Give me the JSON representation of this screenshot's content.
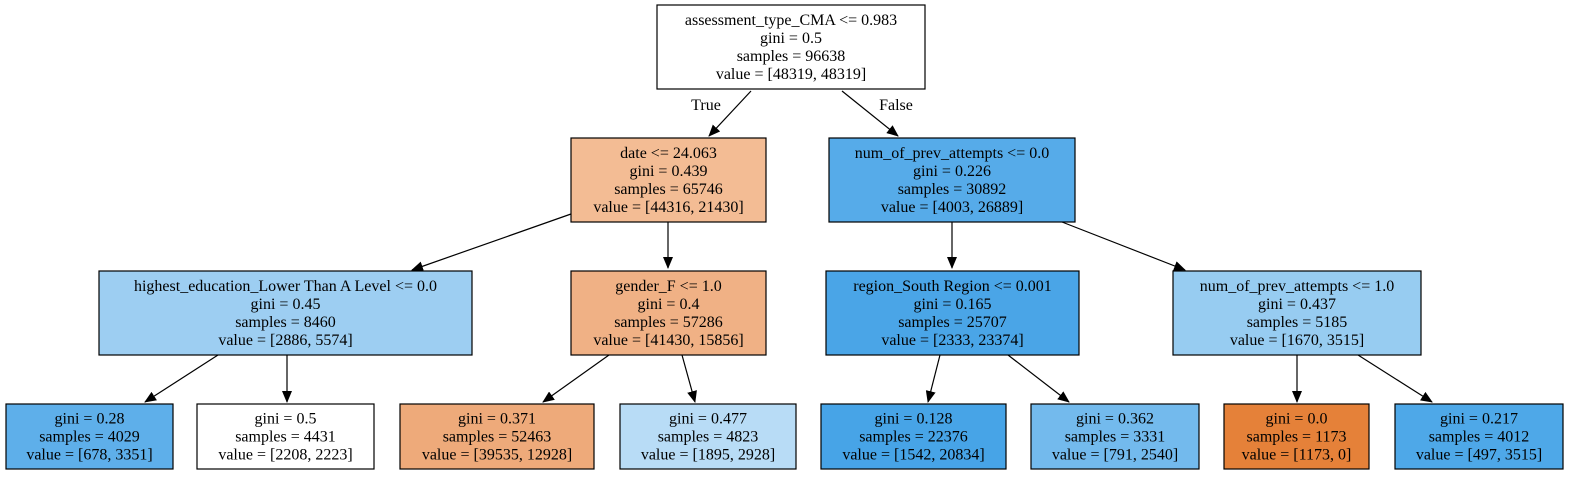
{
  "edge_labels": {
    "true_label": "True",
    "false_label": "False"
  },
  "nodes": [
    {
      "id": "root",
      "fill": "#ffffff",
      "lines": [
        "assessment_type_CMA <= 0.983",
        "gini = 0.5",
        "samples = 96638",
        "value = [48319, 48319]"
      ]
    },
    {
      "id": "n1",
      "fill": "#f3bc94",
      "lines": [
        "date <= 24.063",
        "gini = 0.439",
        "samples = 65746",
        "value = [44316, 21430]"
      ]
    },
    {
      "id": "n2",
      "fill": "#56abe9",
      "lines": [
        "num_of_prev_attempts <= 0.0",
        "gini = 0.226",
        "samples = 30892",
        "value = [4003, 26889]"
      ]
    },
    {
      "id": "n3",
      "fill": "#9dcef2",
      "lines": [
        "highest_education_Lower Than A Level <= 0.0",
        "gini = 0.45",
        "samples = 8460",
        "value = [2886, 5574]"
      ]
    },
    {
      "id": "n4",
      "fill": "#f0b185",
      "lines": [
        "gender_F <= 1.0",
        "gini = 0.4",
        "samples = 57286",
        "value = [41430, 15856]"
      ]
    },
    {
      "id": "n5",
      "fill": "#4aa5e7",
      "lines": [
        "region_South Region <= 0.001",
        "gini = 0.165",
        "samples = 25707",
        "value = [2333, 23374]"
      ]
    },
    {
      "id": "n6",
      "fill": "#97ccf1",
      "lines": [
        "num_of_prev_attempts <= 1.0",
        "gini = 0.437",
        "samples = 5185",
        "value = [1670, 3515]"
      ]
    },
    {
      "id": "n7",
      "fill": "#5eafea",
      "lines": [
        "gini = 0.28",
        "samples = 4029",
        "value = [678, 3351]"
      ]
    },
    {
      "id": "n8",
      "fill": "#ffffff",
      "lines": [
        "gini = 0.5",
        "samples = 4431",
        "value = [2208, 2223]"
      ]
    },
    {
      "id": "n9",
      "fill": "#eeaa7a",
      "lines": [
        "gini = 0.371",
        "samples = 52463",
        "value = [39535, 12928]"
      ]
    },
    {
      "id": "n10",
      "fill": "#b8dcf6",
      "lines": [
        "gini = 0.477",
        "samples = 4823",
        "value = [1895, 2928]"
      ]
    },
    {
      "id": "n11",
      "fill": "#47a4e7",
      "lines": [
        "gini = 0.128",
        "samples = 22376",
        "value = [1542, 20834]"
      ]
    },
    {
      "id": "n12",
      "fill": "#73baed",
      "lines": [
        "gini = 0.362",
        "samples = 3331",
        "value = [791, 2540]"
      ]
    },
    {
      "id": "n13",
      "fill": "#e58139",
      "lines": [
        "gini = 0.0",
        "samples = 1173",
        "value = [1173, 0]"
      ]
    },
    {
      "id": "n14",
      "fill": "#4ea8e8",
      "lines": [
        "gini = 0.217",
        "samples = 4012",
        "value = [497, 3515]"
      ]
    }
  ]
}
